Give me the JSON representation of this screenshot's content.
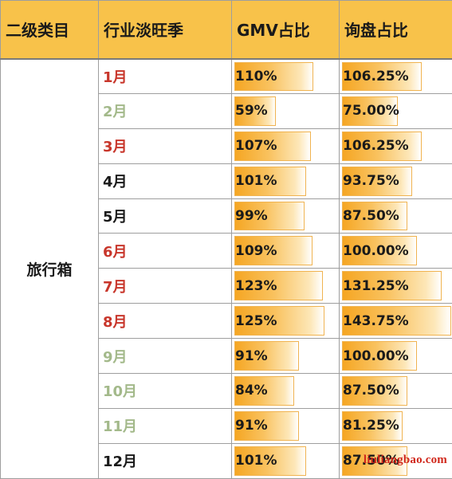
{
  "header": {
    "col1": "二级类目",
    "col2": "行业淡旺季",
    "col3": "GMV占比",
    "col4": "询盘占比"
  },
  "category": "旅行箱",
  "colors": {
    "peak": "#c8362b",
    "off": "#a3b98a",
    "normal": "#1a1a1a"
  },
  "rows": [
    {
      "month": "1月",
      "season": "peak",
      "gmv": "110%",
      "gmv_pct": 110,
      "inq": "106.25%",
      "inq_pct": 106.25
    },
    {
      "month": "2月",
      "season": "off",
      "gmv": "59%",
      "gmv_pct": 59,
      "inq": "75.00%",
      "inq_pct": 75
    },
    {
      "month": "3月",
      "season": "peak",
      "gmv": "107%",
      "gmv_pct": 107,
      "inq": "106.25%",
      "inq_pct": 106.25
    },
    {
      "month": "4月",
      "season": "normal",
      "gmv": "101%",
      "gmv_pct": 101,
      "inq": "93.75%",
      "inq_pct": 93.75
    },
    {
      "month": "5月",
      "season": "normal",
      "gmv": "99%",
      "gmv_pct": 99,
      "inq": "87.50%",
      "inq_pct": 87.5
    },
    {
      "month": "6月",
      "season": "peak",
      "gmv": "109%",
      "gmv_pct": 109,
      "inq": "100.00%",
      "inq_pct": 100
    },
    {
      "month": "7月",
      "season": "peak",
      "gmv": "123%",
      "gmv_pct": 123,
      "inq": "131.25%",
      "inq_pct": 131.25
    },
    {
      "month": "8月",
      "season": "peak",
      "gmv": "125%",
      "gmv_pct": 125,
      "inq": "143.75%",
      "inq_pct": 143.75
    },
    {
      "month": "9月",
      "season": "off",
      "gmv": "91%",
      "gmv_pct": 91,
      "inq": "100.00%",
      "inq_pct": 100
    },
    {
      "month": "10月",
      "season": "off",
      "gmv": "84%",
      "gmv_pct": 84,
      "inq": "87.50%",
      "inq_pct": 87.5
    },
    {
      "month": "11月",
      "season": "off",
      "gmv": "91%",
      "gmv_pct": 91,
      "inq": "81.25%",
      "inq_pct": 81.25
    },
    {
      "month": "12月",
      "season": "normal",
      "gmv": "101%",
      "gmv_pct": 101,
      "inq": "87.50%",
      "inq_pct": 87.5
    }
  ],
  "watermark": "liuliangbao.com"
}
